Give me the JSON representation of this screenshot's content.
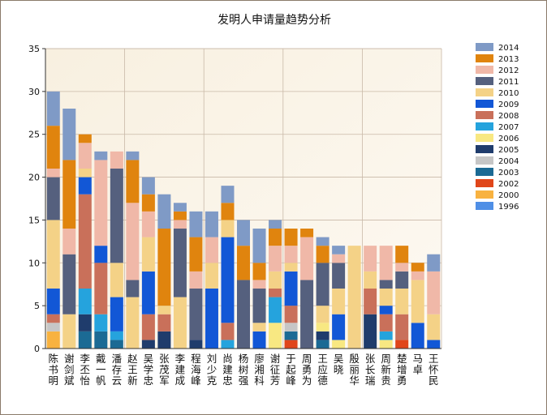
{
  "chart_data": {
    "type": "bar",
    "stacked": true,
    "title": "发明人申请量趋势分析",
    "xlabel": "",
    "ylabel": "",
    "ylim": [
      0,
      35
    ],
    "yticks": [
      0,
      5,
      10,
      15,
      20,
      25,
      30,
      35
    ],
    "grid": true,
    "legend_position": "right",
    "categories": [
      "陈书明",
      "谢剑斌",
      "李丕怡",
      "戴一帆",
      "潘存云",
      "赵王新",
      "吴学忠",
      "张茂军",
      "李建成",
      "程海峰",
      "刘少克",
      "尚建忠",
      "杨树强",
      "廖湘科",
      "谢征芳",
      "于起峰",
      "周勇为",
      "王应德",
      "吴晓",
      "殷丽华",
      "张长瑞",
      "周新贵",
      "楚增勇",
      "马卓",
      "王怀民"
    ],
    "colors": {
      "1996": "#4f8fe6",
      "2000": "#f8b240",
      "2002": "#e0461a",
      "2003": "#1b6a94",
      "2004": "#c6c6c6",
      "2005": "#1f3c6c",
      "2006": "#f8e882",
      "2007": "#25a3dd",
      "2008": "#c9705a",
      "2009": "#1257d6",
      "2010": "#f4d287",
      "2011": "#55607e",
      "2012": "#f0b8a8",
      "2013": "#e0840e",
      "2014": "#7f9ac6"
    },
    "series": [
      {
        "name": "1996",
        "values": [
          0,
          0,
          0,
          0,
          0,
          0,
          0,
          0,
          0,
          0,
          0,
          0,
          0,
          0,
          0,
          0,
          0,
          0,
          0,
          0,
          0,
          0,
          0,
          0,
          0
        ]
      },
      {
        "name": "2000",
        "values": [
          2,
          0,
          0,
          0,
          0,
          0,
          0,
          0,
          0,
          0,
          0,
          0,
          0,
          0,
          0,
          0,
          0,
          0,
          0,
          0,
          0,
          0,
          0,
          0,
          0
        ]
      },
      {
        "name": "2002",
        "values": [
          0,
          0,
          0,
          0,
          0,
          0,
          0,
          0,
          0,
          0,
          0,
          0,
          0,
          0,
          0,
          1,
          0,
          0,
          0,
          0,
          0,
          0,
          1,
          0,
          0
        ]
      },
      {
        "name": "2003",
        "values": [
          0,
          0,
          2,
          2,
          1,
          0,
          0,
          0,
          0,
          0,
          0,
          0,
          0,
          0,
          0,
          1,
          0,
          1,
          0,
          0,
          0,
          0,
          0,
          0,
          0
        ]
      },
      {
        "name": "2004",
        "values": [
          1,
          0,
          0,
          0,
          0,
          0,
          0,
          0,
          0,
          0,
          0,
          0,
          0,
          0,
          0,
          1,
          0,
          0,
          0,
          0,
          0,
          0,
          0,
          0,
          0
        ]
      },
      {
        "name": "2005",
        "values": [
          0,
          0,
          2,
          0,
          0,
          0,
          1,
          2,
          0,
          1,
          0,
          0,
          0,
          0,
          0,
          0,
          0,
          1,
          0,
          0,
          4,
          0,
          0,
          0,
          0
        ]
      },
      {
        "name": "2006",
        "values": [
          0,
          0,
          0,
          0,
          0,
          0,
          0,
          0,
          0,
          0,
          0,
          0,
          0,
          0,
          3,
          0,
          0,
          1,
          1,
          0,
          0,
          1,
          0,
          0,
          0
        ]
      },
      {
        "name": "2007",
        "values": [
          0,
          0,
          3,
          2,
          1,
          0,
          0,
          0,
          0,
          0,
          0,
          1,
          0,
          0,
          3,
          0,
          0,
          0,
          0,
          0,
          0,
          1,
          0,
          0,
          0
        ]
      },
      {
        "name": "2008",
        "values": [
          1,
          0,
          11,
          6,
          0,
          0,
          3,
          2,
          0,
          0,
          0,
          2,
          0,
          0,
          1,
          2,
          0,
          0,
          0,
          0,
          3,
          2,
          3,
          0,
          0
        ]
      },
      {
        "name": "2009",
        "values": [
          3,
          0,
          2,
          2,
          4,
          0,
          5,
          0,
          0,
          0,
          7,
          10,
          0,
          2,
          0,
          4,
          0,
          0,
          3,
          0,
          0,
          1,
          0,
          3,
          1
        ]
      },
      {
        "name": "2010",
        "values": [
          8,
          4,
          1,
          0,
          4,
          6,
          4,
          1,
          6,
          0,
          3,
          2,
          0,
          1,
          2,
          1,
          0,
          2,
          3,
          12,
          2,
          2,
          3,
          5,
          3
        ]
      },
      {
        "name": "2011",
        "values": [
          5,
          7,
          0,
          0,
          11,
          2,
          0,
          0,
          8,
          6,
          0,
          0,
          8,
          4,
          0,
          0,
          8,
          5,
          3,
          0,
          0,
          1,
          2,
          0,
          0
        ]
      },
      {
        "name": "2012",
        "values": [
          1,
          3,
          3,
          10,
          2,
          9,
          3,
          0,
          1,
          2,
          3,
          0,
          0,
          1,
          3,
          2,
          5,
          0,
          1,
          0,
          3,
          4,
          1,
          1,
          5
        ]
      },
      {
        "name": "2013",
        "values": [
          5,
          8,
          1,
          0,
          0,
          5,
          2,
          9,
          1,
          4,
          0,
          2,
          4,
          2,
          2,
          2,
          1,
          2,
          0,
          0,
          0,
          0,
          2,
          1,
          0
        ]
      },
      {
        "name": "2014",
        "values": [
          4,
          6,
          0,
          1,
          0,
          1,
          2,
          4,
          1,
          3,
          3,
          2,
          3,
          4,
          1,
          0,
          0,
          1,
          1,
          0,
          0,
          0,
          0,
          0,
          2
        ]
      }
    ]
  }
}
